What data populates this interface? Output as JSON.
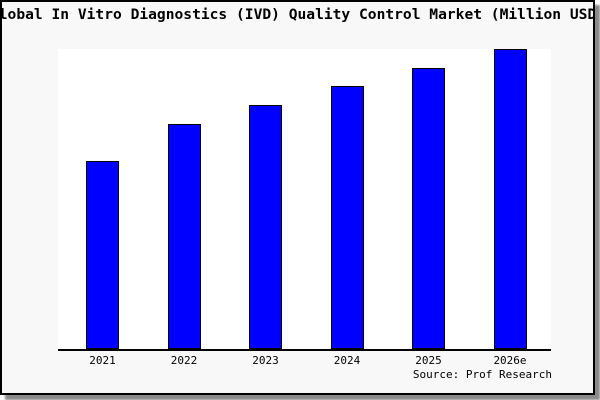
{
  "frame": {
    "source_label": "Source: Prof Research"
  },
  "colors": {
    "bar_fill": "#0000ff",
    "bar_edge": "#000000",
    "figure_background": "#f8f8f8",
    "plot_background": "#ffffff",
    "frame_border": "#000000",
    "shadow": "#8a8a8a"
  },
  "chart_data": {
    "type": "bar",
    "title": "Global In Vitro Diagnostics (IVD) Quality Control Market (Million USD)",
    "categories": [
      "2021",
      "2022",
      "2023",
      "2024",
      "2025",
      "2026e"
    ],
    "values_pct_of_max": [
      62.7,
      75.0,
      81.3,
      87.7,
      93.7,
      100.0
    ],
    "xlabel": "",
    "ylabel": "",
    "y_axis_shown": false,
    "gridlines": false,
    "legend": false,
    "bar_color": "#0000ff",
    "bar_edge_color": "#000000",
    "annotation": "Source: Prof Research"
  }
}
